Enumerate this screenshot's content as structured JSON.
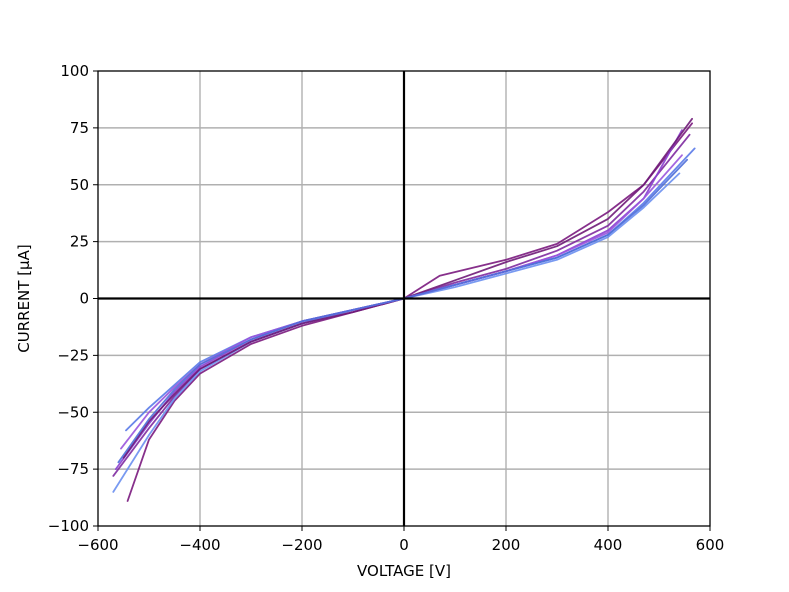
{
  "chart_data": {
    "type": "line",
    "title": "",
    "xlabel": "VOLTAGE [V]",
    "ylabel": "CURRENT [µA]",
    "xlim": [
      -600,
      600
    ],
    "ylim": [
      -100,
      100
    ],
    "xticks": [
      -600,
      -400,
      -200,
      0,
      200,
      400,
      600
    ],
    "yticks": [
      -100,
      -75,
      -50,
      -25,
      0,
      25,
      50,
      75,
      100
    ],
    "xtick_labels": [
      "−600",
      "−400",
      "−200",
      "0",
      "200",
      "400",
      "600"
    ],
    "ytick_labels": [
      "−100",
      "−75",
      "−50",
      "−25",
      "0",
      "25",
      "50",
      "75",
      "100"
    ],
    "grid": true,
    "zero_axes": true,
    "legend": "none",
    "series": [
      {
        "color": "#7a1a7e",
        "points": [
          [
            -542,
            -89
          ],
          [
            -500,
            -62
          ],
          [
            -450,
            -45
          ],
          [
            -400,
            -33
          ],
          [
            -300,
            -20
          ],
          [
            -200,
            -12
          ],
          [
            -100,
            -6
          ],
          [
            0,
            0
          ],
          [
            70,
            10
          ],
          [
            200,
            17
          ],
          [
            300,
            24
          ],
          [
            400,
            38
          ],
          [
            470,
            50
          ],
          [
            565,
            77
          ]
        ]
      },
      {
        "color": "#7e2aa0",
        "points": [
          [
            -570,
            -78
          ],
          [
            -500,
            -57
          ],
          [
            -450,
            -43
          ],
          [
            -400,
            -31
          ],
          [
            -300,
            -19
          ],
          [
            -200,
            -11
          ],
          [
            -100,
            -5
          ],
          [
            0,
            0
          ],
          [
            100,
            7
          ],
          [
            200,
            13
          ],
          [
            300,
            21
          ],
          [
            400,
            32
          ],
          [
            470,
            47
          ],
          [
            560,
            72
          ]
        ]
      },
      {
        "color": "#8a3fd0",
        "points": [
          [
            -565,
            -75
          ],
          [
            -500,
            -55
          ],
          [
            -450,
            -41
          ],
          [
            -400,
            -30
          ],
          [
            -300,
            -18
          ],
          [
            -200,
            -10
          ],
          [
            -100,
            -5
          ],
          [
            0,
            0
          ],
          [
            100,
            6
          ],
          [
            200,
            12
          ],
          [
            300,
            19
          ],
          [
            400,
            30
          ],
          [
            470,
            44
          ],
          [
            545,
            74
          ]
        ]
      },
      {
        "color": "#6a8ff0",
        "points": [
          [
            -570,
            -85
          ],
          [
            -500,
            -60
          ],
          [
            -450,
            -44
          ],
          [
            -400,
            -32
          ],
          [
            -300,
            -19
          ],
          [
            -200,
            -11
          ],
          [
            -100,
            -5
          ],
          [
            0,
            0
          ],
          [
            100,
            5
          ],
          [
            200,
            11
          ],
          [
            300,
            17
          ],
          [
            400,
            27
          ],
          [
            470,
            40
          ],
          [
            540,
            55
          ]
        ]
      },
      {
        "color": "#5a7ae8",
        "points": [
          [
            -545,
            -58
          ],
          [
            -500,
            -48
          ],
          [
            -450,
            -38
          ],
          [
            -400,
            -28
          ],
          [
            -300,
            -17
          ],
          [
            -200,
            -10
          ],
          [
            -100,
            -5
          ],
          [
            0,
            0
          ],
          [
            100,
            6
          ],
          [
            200,
            12
          ],
          [
            300,
            18
          ],
          [
            400,
            28
          ],
          [
            470,
            42
          ],
          [
            570,
            66
          ]
        ]
      },
      {
        "color": "#6f1a78",
        "points": [
          [
            -550,
            -70
          ],
          [
            -500,
            -54
          ],
          [
            -450,
            -42
          ],
          [
            -400,
            -31
          ],
          [
            -300,
            -19
          ],
          [
            -200,
            -11
          ],
          [
            -100,
            -6
          ],
          [
            0,
            0
          ],
          [
            100,
            8
          ],
          [
            200,
            16
          ],
          [
            300,
            23
          ],
          [
            400,
            35
          ],
          [
            470,
            50
          ],
          [
            565,
            79
          ]
        ]
      },
      {
        "color": "#9a55dd",
        "points": [
          [
            -555,
            -66
          ],
          [
            -500,
            -50
          ],
          [
            -450,
            -39
          ],
          [
            -400,
            -29
          ],
          [
            -300,
            -17
          ],
          [
            -200,
            -10
          ],
          [
            -100,
            -5
          ],
          [
            0,
            0
          ],
          [
            100,
            6
          ],
          [
            200,
            12
          ],
          [
            300,
            19
          ],
          [
            400,
            29
          ],
          [
            470,
            44
          ],
          [
            545,
            63
          ]
        ]
      },
      {
        "color": "#4f6fd8",
        "points": [
          [
            -560,
            -72
          ],
          [
            -500,
            -53
          ],
          [
            -450,
            -40
          ],
          [
            -400,
            -29
          ],
          [
            -300,
            -18
          ],
          [
            -200,
            -10
          ],
          [
            -100,
            -5
          ],
          [
            0,
            0
          ],
          [
            100,
            6
          ],
          [
            200,
            12
          ],
          [
            300,
            18
          ],
          [
            400,
            28
          ],
          [
            470,
            41
          ],
          [
            555,
            61
          ]
        ]
      }
    ]
  }
}
